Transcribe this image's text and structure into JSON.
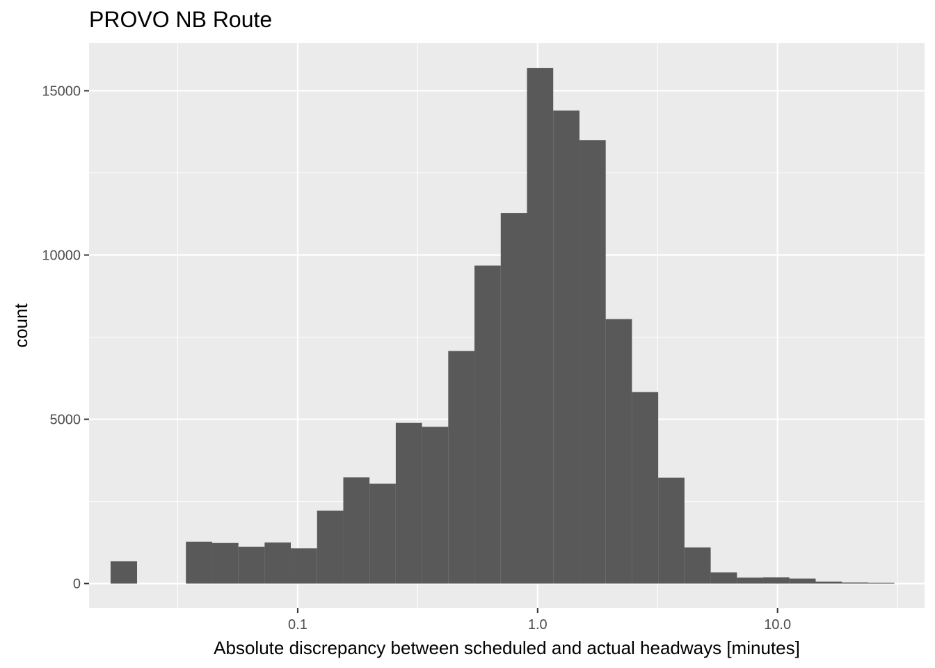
{
  "chart_data": {
    "type": "bar",
    "title": "PROVO NB Route",
    "xlabel": "Absolute discrepancy between scheduled and actual headways [minutes]",
    "ylabel": "count",
    "x_scale": "log10",
    "x_ticks": [
      {
        "value": 0.1,
        "label": "0.1"
      },
      {
        "value": 1.0,
        "label": "1.0"
      },
      {
        "value": 10.0,
        "label": "10.0"
      }
    ],
    "y_ticks": [
      {
        "value": 0,
        "label": "0"
      },
      {
        "value": 5000,
        "label": "5000"
      },
      {
        "value": 10000,
        "label": "10000"
      },
      {
        "value": 15000,
        "label": "15000"
      }
    ],
    "xlim": [
      0.0135,
      41
    ],
    "ylim": [
      -750,
      16450
    ],
    "grid": true,
    "bar_color": "#595959",
    "panel_background": "#ebebeb",
    "bins": [
      {
        "x_start": 0.0166,
        "x_end": 0.0214,
        "count": 680
      },
      {
        "x_start": 0.0342,
        "x_end": 0.044,
        "count": 1270
      },
      {
        "x_start": 0.044,
        "x_end": 0.0566,
        "count": 1240
      },
      {
        "x_start": 0.0566,
        "x_end": 0.0728,
        "count": 1120
      },
      {
        "x_start": 0.0728,
        "x_end": 0.0936,
        "count": 1250
      },
      {
        "x_start": 0.0936,
        "x_end": 0.1204,
        "count": 1070
      },
      {
        "x_start": 0.1204,
        "x_end": 0.1549,
        "count": 2220
      },
      {
        "x_start": 0.1549,
        "x_end": 0.1992,
        "count": 3230
      },
      {
        "x_start": 0.1992,
        "x_end": 0.2563,
        "count": 3040
      },
      {
        "x_start": 0.2563,
        "x_end": 0.3297,
        "count": 4890
      },
      {
        "x_start": 0.3297,
        "x_end": 0.4241,
        "count": 4770
      },
      {
        "x_start": 0.4241,
        "x_end": 0.5456,
        "count": 7080
      },
      {
        "x_start": 0.5456,
        "x_end": 0.7019,
        "count": 9680
      },
      {
        "x_start": 0.7019,
        "x_end": 0.9029,
        "count": 11280
      },
      {
        "x_start": 0.9029,
        "x_end": 1.1615,
        "count": 15690
      },
      {
        "x_start": 1.1615,
        "x_end": 1.4943,
        "count": 14400
      },
      {
        "x_start": 1.4943,
        "x_end": 1.9223,
        "count": 13500
      },
      {
        "x_start": 1.9223,
        "x_end": 2.4729,
        "count": 8050
      },
      {
        "x_start": 2.4729,
        "x_end": 3.1812,
        "count": 5830
      },
      {
        "x_start": 3.1812,
        "x_end": 4.0925,
        "count": 3220
      },
      {
        "x_start": 4.0925,
        "x_end": 5.2648,
        "count": 1100
      },
      {
        "x_start": 5.2648,
        "x_end": 6.7728,
        "count": 340
      },
      {
        "x_start": 6.7728,
        "x_end": 8.7128,
        "count": 180
      },
      {
        "x_start": 8.7128,
        "x_end": 11.2085,
        "count": 190
      },
      {
        "x_start": 11.2085,
        "x_end": 14.4191,
        "count": 150
      },
      {
        "x_start": 14.4191,
        "x_end": 18.5494,
        "count": 60
      },
      {
        "x_start": 18.5494,
        "x_end": 23.8627,
        "count": 30
      },
      {
        "x_start": 23.8627,
        "x_end": 30.698,
        "count": 20
      }
    ]
  }
}
